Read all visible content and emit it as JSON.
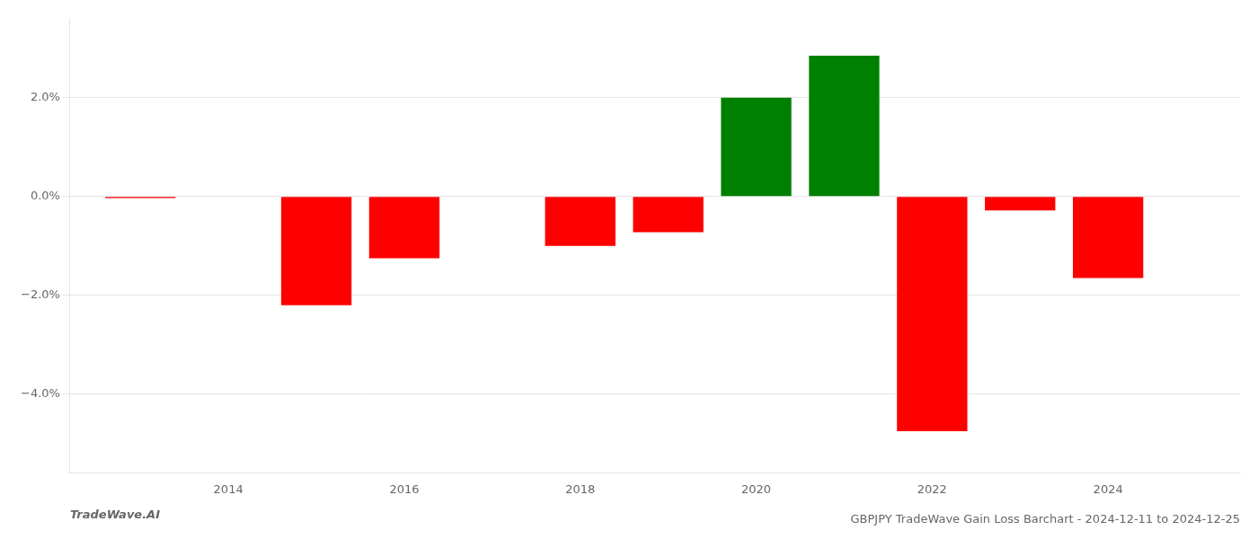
{
  "chart_data": {
    "type": "bar",
    "title": "GBPJPY TradeWave Gain Loss Barchart - 2024-12-11 to 2024-12-25",
    "annotations": [
      "TradeWave.AI"
    ],
    "x": [
      2013,
      2015,
      2016,
      2018,
      2019,
      2020,
      2021,
      2022,
      2023,
      2024
    ],
    "values": [
      -0.03,
      -2.2,
      -1.25,
      -1.0,
      -0.72,
      2.0,
      2.85,
      -4.75,
      -0.28,
      -1.65
    ],
    "colors": [
      "#ff0000",
      "#ff0000",
      "#ff0000",
      "#ff0000",
      "#ff0000",
      "#008000",
      "#008000",
      "#ff0000",
      "#ff0000",
      "#ff0000"
    ],
    "xlim": [
      2012.2,
      2025.5
    ],
    "xticks": [
      2014,
      2016,
      2018,
      2020,
      2022,
      2024
    ],
    "ylim": [
      -5.6,
      3.6
    ],
    "yticks": [
      {
        "value": -4.0,
        "label": "−4.0%"
      },
      {
        "value": -2.0,
        "label": "−2.0%"
      },
      {
        "value": 0.0,
        "label": "0.0%"
      },
      {
        "value": 2.0,
        "label": "2.0%"
      }
    ],
    "grid": "y"
  }
}
